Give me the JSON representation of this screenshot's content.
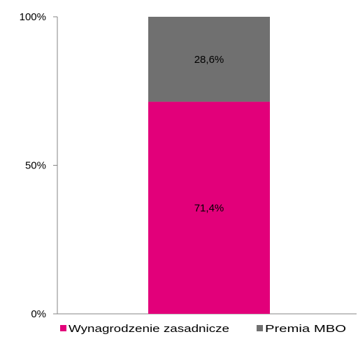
{
  "chart_data": {
    "type": "bar",
    "stacked": true,
    "normalized": true,
    "categories": [
      ""
    ],
    "series": [
      {
        "name": "Wynagrodzenie zasadnicze",
        "values": [
          71.4
        ],
        "label": "71,4%",
        "color": "#e2007a"
      },
      {
        "name": "Premia MBO",
        "values": [
          28.6
        ],
        "label": "28,6%",
        "color": "#707070"
      }
    ],
    "ylim": [
      0,
      100
    ],
    "yticks": [
      {
        "value": 0,
        "label": "0%"
      },
      {
        "value": 50,
        "label": "50%"
      },
      {
        "value": 100,
        "label": "100%"
      }
    ],
    "grid": false,
    "legend_position": "bottom"
  }
}
